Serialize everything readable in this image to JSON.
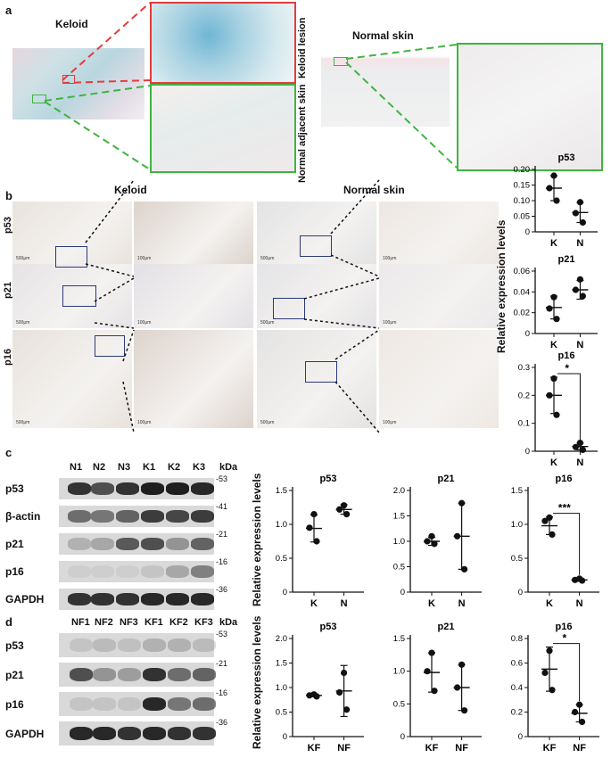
{
  "panel_a": {
    "letter": "a",
    "keloid_title": "Keloid",
    "normal_title": "Normal skin",
    "zoom_lesion_label": "Keloid lesion",
    "zoom_adjacent_label": "Normal adjacent skin",
    "colors": {
      "red_box": "#e63b3b",
      "green_box": "#3fb43f"
    }
  },
  "panel_b": {
    "letter": "b",
    "keloid_title": "Keloid",
    "normal_title": "Normal skin",
    "rows": [
      "p53",
      "p21",
      "p16"
    ],
    "scale_low": "500μm",
    "scale_high": "100μm",
    "y_axis_label": "Relative expression levels"
  },
  "panel_c": {
    "letter": "c",
    "lanes": [
      "N1",
      "N2",
      "N3",
      "K1",
      "K2",
      "K3"
    ],
    "kda_label": "kDa",
    "proteins": [
      "p53",
      "β-actin",
      "p21",
      "p16",
      "GAPDH"
    ],
    "markers": [
      "-53",
      "-41",
      "-21",
      "-16",
      "-36"
    ],
    "y_axis_label": "Relative expression levels"
  },
  "panel_d": {
    "letter": "d",
    "lanes": [
      "NF1",
      "NF2",
      "NF3",
      "KF1",
      "KF2",
      "KF3"
    ],
    "kda_label": "kDa",
    "proteins": [
      "p53",
      "p21",
      "p16",
      "GAPDH"
    ],
    "markers": [
      "-53",
      "-21",
      "-16",
      "-36"
    ],
    "y_axis_label": "Relative expression levels"
  },
  "chart_data": [
    {
      "id": "b_p53",
      "type": "scatter",
      "title": "p53",
      "categories": [
        "K",
        "N"
      ],
      "ylim": [
        0,
        0.2
      ],
      "yticks": [
        0,
        0.05,
        0.1,
        0.15,
        0.2
      ],
      "tick_decimals": 2,
      "points": [
        [
          0.18,
          0.14,
          0.1
        ],
        [
          0.095,
          0.06,
          0.03
        ]
      ],
      "mean": [
        0.14,
        0.062
      ],
      "err": [
        0.04,
        0.032
      ],
      "sig": ""
    },
    {
      "id": "b_p21",
      "type": "scatter",
      "title": "p21",
      "categories": [
        "K",
        "N"
      ],
      "ylim": [
        0,
        0.06
      ],
      "yticks": [
        0,
        0.02,
        0.04,
        0.06
      ],
      "tick_decimals": 2,
      "points": [
        [
          0.035,
          0.024,
          0.014
        ],
        [
          0.052,
          0.042,
          0.036
        ]
      ],
      "mean": [
        0.025,
        0.042
      ],
      "err": [
        0.011,
        0.009
      ],
      "sig": ""
    },
    {
      "id": "b_p16",
      "type": "scatter",
      "title": "p16",
      "categories": [
        "K",
        "N"
      ],
      "ylim": [
        0,
        0.3
      ],
      "yticks": [
        0,
        0.1,
        0.2,
        0.3
      ],
      "tick_decimals": 1,
      "points": [
        [
          0.26,
          0.2,
          0.13
        ],
        [
          0.03,
          0.015,
          0.005
        ]
      ],
      "mean": [
        0.2,
        0.017
      ],
      "err": [
        0.065,
        0.012
      ],
      "sig": "*"
    },
    {
      "id": "c_p53",
      "type": "scatter",
      "title": "p53",
      "categories": [
        "K",
        "N"
      ],
      "ylim": [
        0,
        1.5
      ],
      "yticks": [
        0,
        0.5,
        1.0,
        1.5
      ],
      "tick_decimals": 1,
      "points": [
        [
          1.15,
          0.95,
          0.75
        ],
        [
          1.28,
          1.22,
          1.15
        ]
      ],
      "mean": [
        0.94,
        1.22
      ],
      "err": [
        0.2,
        0.07
      ],
      "sig": ""
    },
    {
      "id": "c_p21",
      "type": "scatter",
      "title": "p21",
      "categories": [
        "K",
        "N"
      ],
      "ylim": [
        0,
        2.0
      ],
      "yticks": [
        0,
        0.5,
        1.0,
        1.5,
        2.0
      ],
      "tick_decimals": 1,
      "points": [
        [
          1.1,
          1.0,
          0.95
        ],
        [
          1.75,
          1.1,
          0.45
        ]
      ],
      "mean": [
        1.0,
        1.1
      ],
      "err": [
        0.08,
        0.65
      ],
      "sig": ""
    },
    {
      "id": "c_p16",
      "type": "scatter",
      "title": "p16",
      "categories": [
        "K",
        "N"
      ],
      "ylim": [
        0,
        1.5
      ],
      "yticks": [
        0,
        0.5,
        1.0,
        1.5
      ],
      "tick_decimals": 1,
      "points": [
        [
          1.1,
          1.05,
          0.85
        ],
        [
          0.2,
          0.18,
          0.17
        ]
      ],
      "mean": [
        0.98,
        0.18
      ],
      "err": [
        0.13,
        0.02
      ],
      "sig": "***"
    },
    {
      "id": "d_p53",
      "type": "scatter",
      "title": "p53",
      "categories": [
        "KF",
        "NF"
      ],
      "ylim": [
        0,
        2.0
      ],
      "yticks": [
        0,
        0.5,
        1.0,
        1.5,
        2.0
      ],
      "tick_decimals": 1,
      "points": [
        [
          0.86,
          0.84,
          0.82
        ],
        [
          1.3,
          0.9,
          0.55
        ]
      ],
      "mean": [
        0.84,
        0.93
      ],
      "err": [
        0.02,
        0.52
      ],
      "sig": ""
    },
    {
      "id": "d_p21",
      "type": "scatter",
      "title": "p21",
      "categories": [
        "KF",
        "NF"
      ],
      "ylim": [
        0,
        1.5
      ],
      "yticks": [
        0,
        0.5,
        1.0,
        1.5
      ],
      "tick_decimals": 1,
      "points": [
        [
          1.28,
          1.0,
          0.7
        ],
        [
          1.1,
          0.75,
          0.4
        ]
      ],
      "mean": [
        0.98,
        0.75
      ],
      "err": [
        0.3,
        0.35
      ],
      "sig": ""
    },
    {
      "id": "d_p16",
      "type": "scatter",
      "title": "p16",
      "categories": [
        "KF",
        "NF"
      ],
      "ylim": [
        0,
        0.8
      ],
      "yticks": [
        0,
        0.2,
        0.4,
        0.6,
        0.8
      ],
      "tick_decimals": 1,
      "points": [
        [
          0.7,
          0.52,
          0.38
        ],
        [
          0.26,
          0.2,
          0.12
        ]
      ],
      "mean": [
        0.55,
        0.19
      ],
      "err": [
        0.18,
        0.07
      ],
      "sig": "*"
    }
  ]
}
